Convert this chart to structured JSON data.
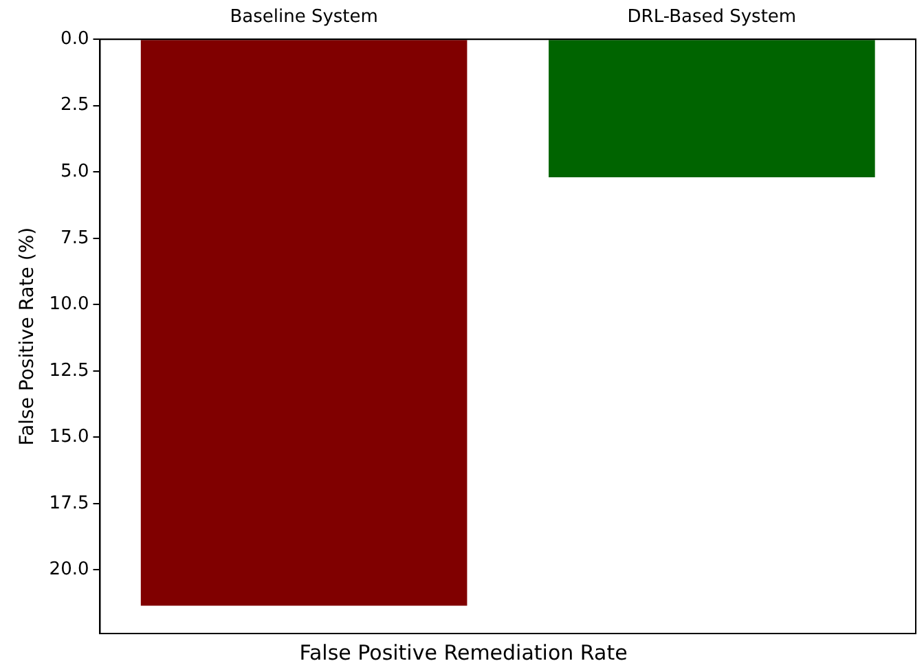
{
  "chart_data": {
    "type": "bar",
    "xlabel": "False Positive Remediation Rate",
    "ylabel": "False Positive Rate (%)",
    "categories": [
      "Baseline System",
      "DRL-Based System"
    ],
    "values": [
      21.35,
      5.2
    ],
    "colors": [
      "#800000",
      "#006400"
    ],
    "ylim": [
      22.4,
      0
    ],
    "yticks": [
      {
        "value": 0,
        "label": "0.0"
      },
      {
        "value": 2.5,
        "label": "2.5"
      },
      {
        "value": 5,
        "label": "5.0"
      },
      {
        "value": 7.5,
        "label": "7.5"
      },
      {
        "value": 10,
        "label": "10.0"
      },
      {
        "value": 12.5,
        "label": "12.5"
      },
      {
        "value": 15,
        "label": "15.0"
      },
      {
        "value": 17.5,
        "label": "17.5"
      },
      {
        "value": 20,
        "label": "20.0"
      }
    ],
    "grid": false,
    "legend": false
  }
}
